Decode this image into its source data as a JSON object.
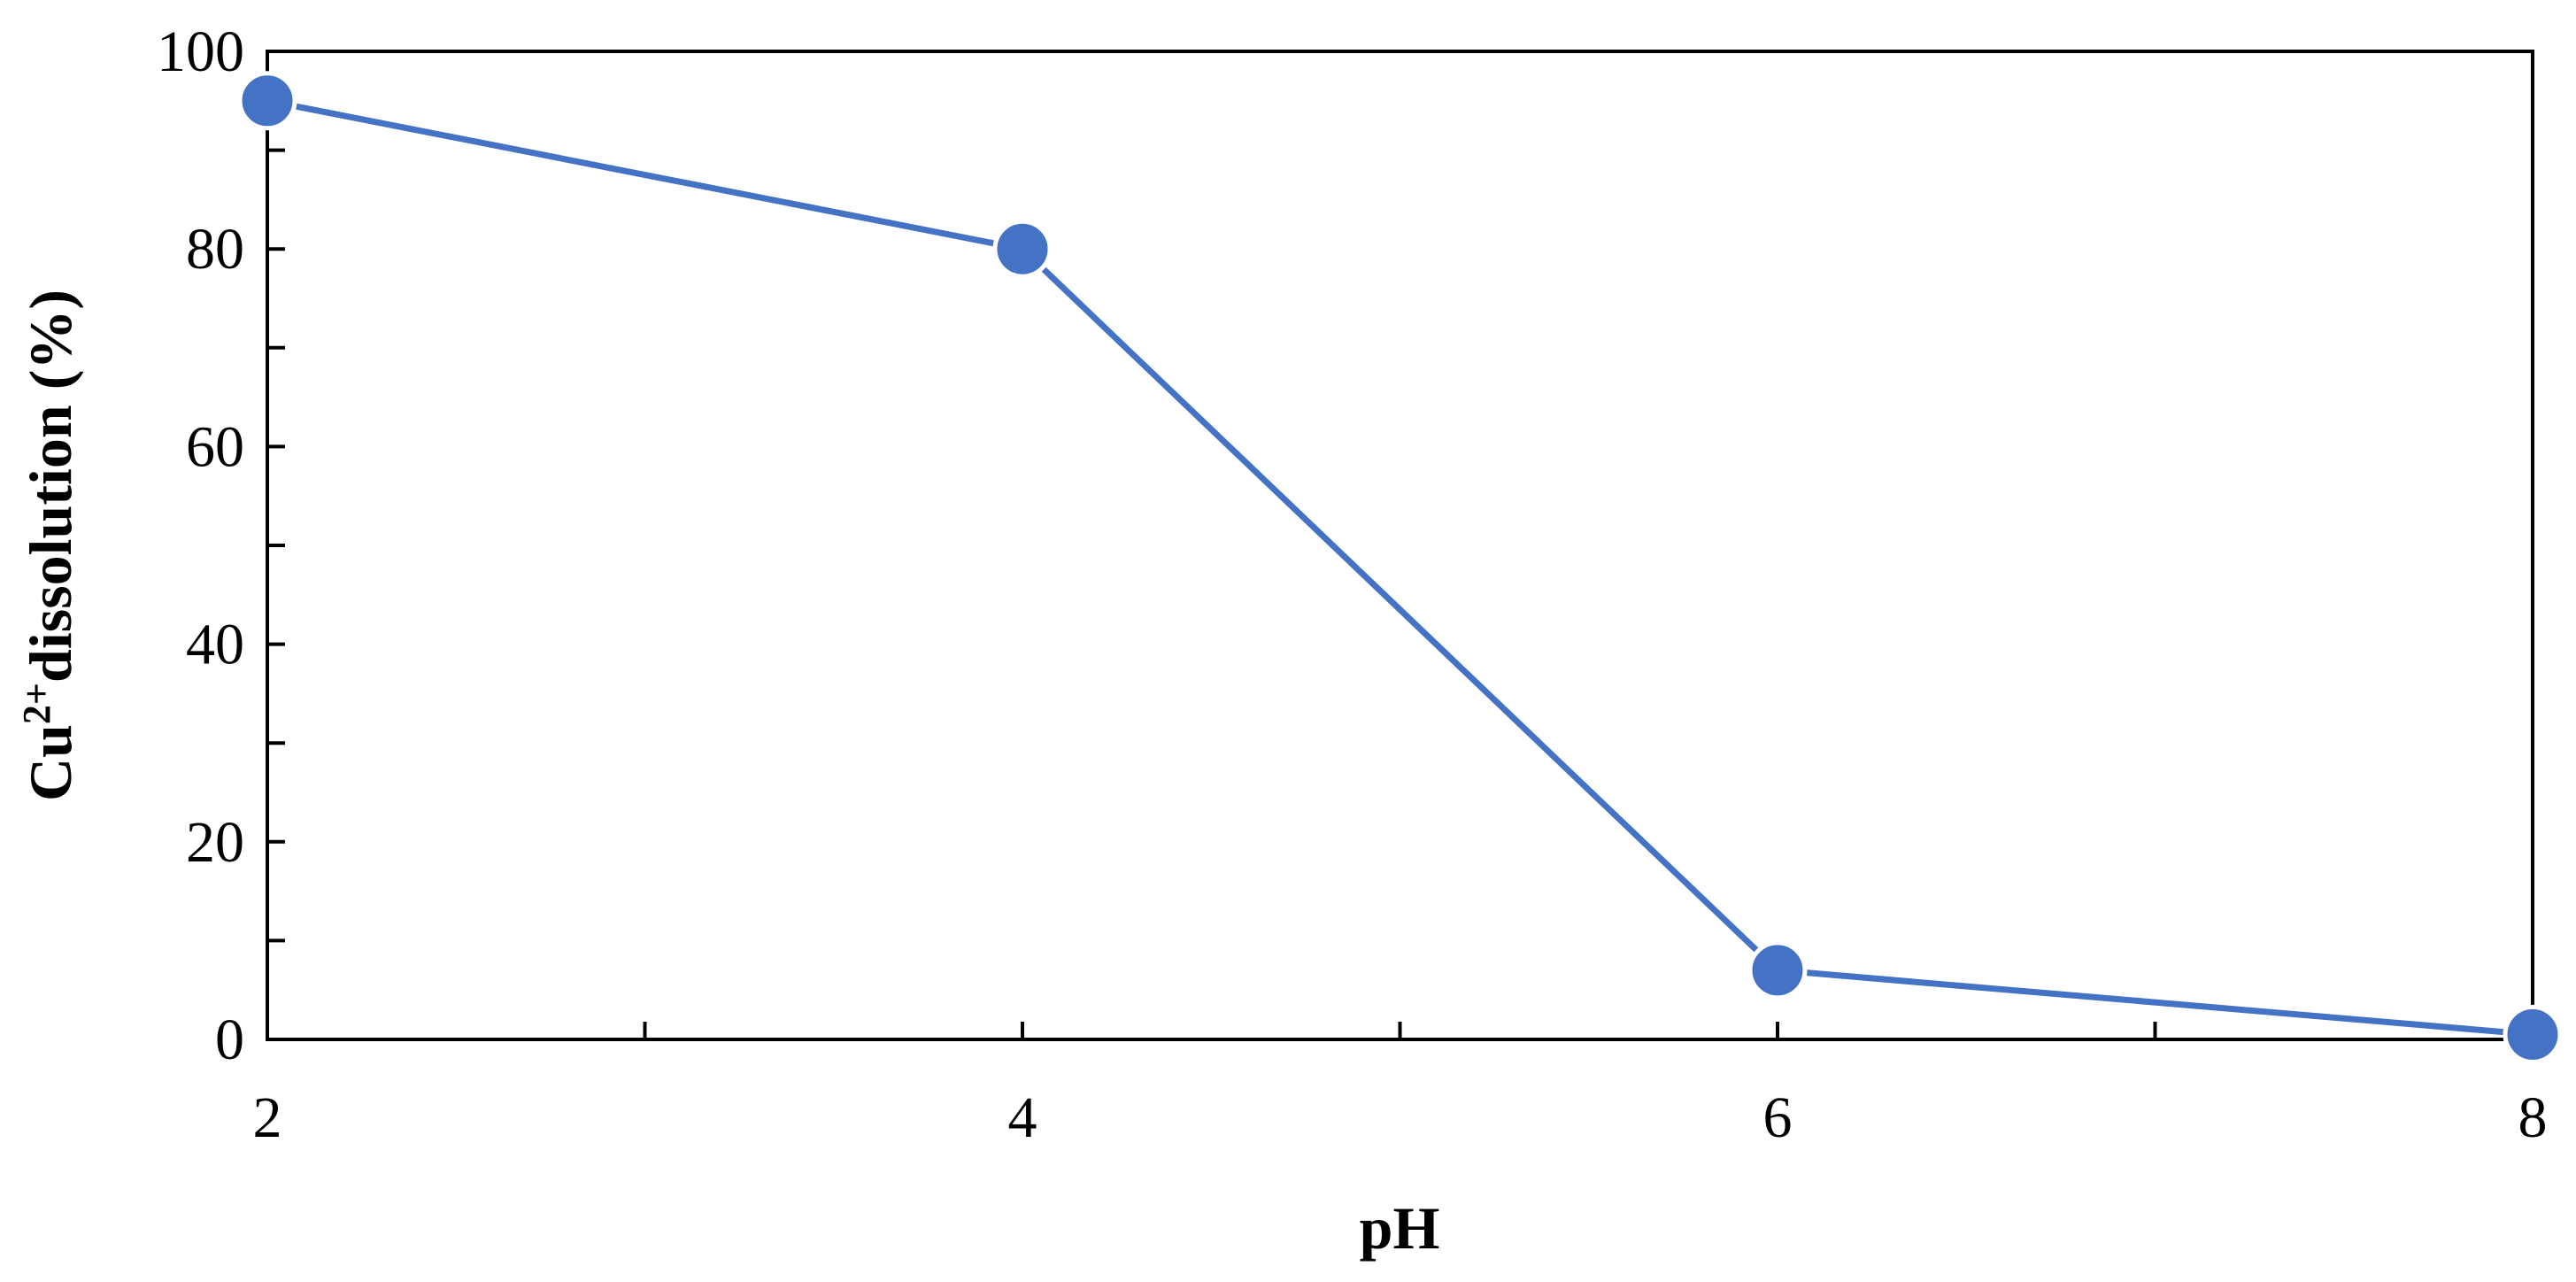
{
  "chart_data": {
    "type": "line",
    "title": "",
    "xlabel": "pH",
    "ylabel_main": "Cu",
    "ylabel_sup": "2+",
    "ylabel_rest": "dissolution (%)",
    "xlim": [
      2,
      8
    ],
    "ylim": [
      0,
      100
    ],
    "x_ticks": [
      2,
      4,
      6,
      8
    ],
    "x_ticks_minor": [
      3,
      5,
      7
    ],
    "y_ticks": [
      0,
      20,
      40,
      60,
      80,
      100
    ],
    "y_ticks_minor": [
      10,
      30,
      50,
      70,
      90
    ],
    "grid": false,
    "legend": "none",
    "series": [
      {
        "color": "#4472C4",
        "x": [
          2,
          4,
          6,
          8
        ],
        "y": [
          95,
          80,
          7,
          0.5
        ]
      }
    ]
  }
}
